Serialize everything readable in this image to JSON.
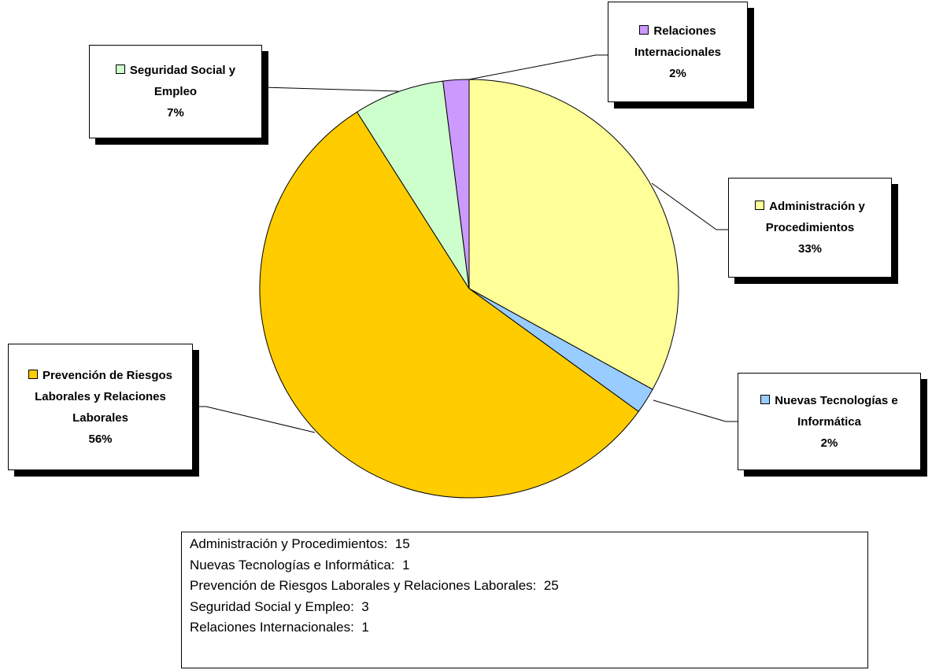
{
  "chart_data": {
    "type": "pie",
    "categories": [
      "Administración y Procedimientos",
      "Nuevas Tecnologías e Informática",
      "Prevención de Riesgos Laborales y Relaciones Laborales",
      "Seguridad Social y Empleo",
      "Relaciones Internacionales"
    ],
    "values": [
      33,
      2,
      56,
      7,
      2
    ],
    "value_labels": [
      "33%",
      "2%",
      "56%",
      "7%",
      "2%"
    ],
    "colors": [
      "#ffff99",
      "#99ccff",
      "#ffcc00",
      "#ccffcc",
      "#cc99ff"
    ],
    "summary": [
      {
        "label": "Administración y Procedimientos:",
        "value": 15
      },
      {
        "label": "Nuevas Tecnologías e Informática:",
        "value": 1
      },
      {
        "label": "Prevención de Riesgos Laborales y Relaciones Laborales:",
        "value": 25
      },
      {
        "label": "Seguridad Social y Empleo:",
        "value": 3
      },
      {
        "label": "Relaciones Internacionales:",
        "value": 1
      }
    ]
  }
}
